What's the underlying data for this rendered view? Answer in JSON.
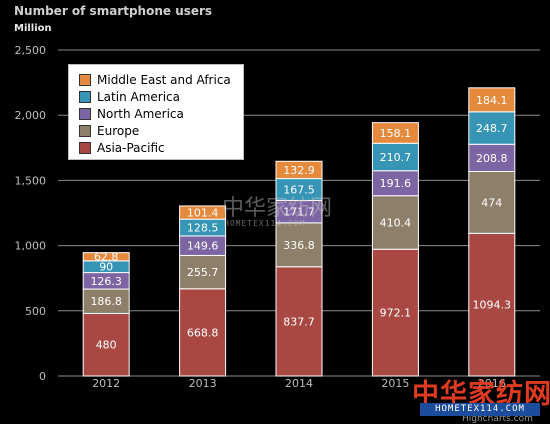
{
  "chart_data": {
    "type": "bar",
    "stacked": true,
    "title": "Number of smartphone users",
    "ylabel": "Million",
    "ylim": [
      0,
      2500
    ],
    "yticks": [
      "0",
      "500",
      "1,000",
      "1,500",
      "2,000",
      "2,500"
    ],
    "grid": true,
    "legend_position": "top-left",
    "categories": [
      "2012",
      "2013",
      "2014",
      "2015",
      "2016"
    ],
    "category_labels": [
      "2012",
      "2013",
      "2014",
      "2015",
      "2016"
    ],
    "series": [
      {
        "name": "Asia-Pacific",
        "color": "#a94843",
        "values": [
          480,
          668.8,
          837.7,
          972.1,
          1094.3
        ],
        "labels": [
          "480",
          "668.8",
          "837.7",
          "972.1",
          "1094.3"
        ]
      },
      {
        "name": "Europe",
        "color": "#8e7f6a",
        "values": [
          186.8,
          255.7,
          336.8,
          410.4,
          474
        ],
        "labels": [
          "186.8",
          "255.7",
          "336.8",
          "410.4",
          "474"
        ]
      },
      {
        "name": "North America",
        "color": "#7d65a3",
        "values": [
          126.3,
          149.6,
          171.7,
          191.6,
          208.8
        ],
        "labels": [
          "126.3",
          "149.6",
          "171.7",
          "191.6",
          "208.8"
        ]
      },
      {
        "name": "Latin America",
        "color": "#3694b4",
        "values": [
          90,
          128.5,
          167.5,
          210.7,
          248.7
        ],
        "labels": [
          "90",
          "128.5",
          "167.5",
          "210.7",
          "248.7"
        ]
      },
      {
        "name": "Middle East and Africa",
        "color": "#e58a3d",
        "values": [
          62.8,
          101.4,
          132.9,
          158.1,
          184.1
        ],
        "labels": [
          "62.8",
          "101.4",
          "132.9",
          "158.1",
          "184.1"
        ]
      }
    ],
    "legend_order": [
      "Middle East and Africa",
      "Latin America",
      "North America",
      "Europe",
      "Asia-Pacific"
    ]
  },
  "watermark": {
    "cn": "中华家纺网",
    "url": "HOMETEX114.COM",
    "center_cn": "中华家纺网",
    "center_url": "HOMETEX114.COM"
  },
  "credits": "Highcharts.com"
}
